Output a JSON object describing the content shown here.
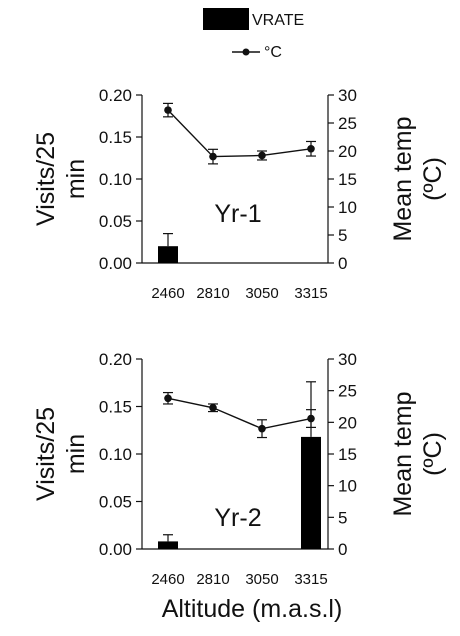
{
  "legend": {
    "bar_label": "VRATE",
    "line_label": "°C"
  },
  "xlabel": "Altitude (m.a.s.l)",
  "colors": {
    "bar": "#000000",
    "line": "#111111",
    "axis": "#111111"
  },
  "chart_data": [
    {
      "type": "bar",
      "panel_label": "Yr-1",
      "categories": [
        "2460",
        "2810",
        "3050",
        "3315"
      ],
      "series": [
        {
          "name": "VRATE",
          "axis": "left",
          "values": [
            0.02,
            0,
            0,
            0
          ],
          "errors": [
            0.015,
            0,
            0,
            0
          ]
        },
        {
          "name": "°C",
          "axis": "right",
          "type": "line",
          "values": [
            27.3,
            19.0,
            19.2,
            20.4
          ],
          "errors": [
            1.2,
            1.3,
            0.8,
            1.3
          ]
        }
      ],
      "ylabel": "Visits/25 min",
      "y2label": "Mean temp (ºC)",
      "ylim": [
        0,
        0.2
      ],
      "y2lim": [
        0,
        30
      ],
      "yticks": [
        "0.00",
        "0.05",
        "0.10",
        "0.15",
        "0.20"
      ],
      "y2ticks": [
        "0",
        "5",
        "10",
        "15",
        "20",
        "25",
        "30"
      ]
    },
    {
      "type": "bar",
      "panel_label": "Yr-2",
      "categories": [
        "2460",
        "2810",
        "3050",
        "3315"
      ],
      "series": [
        {
          "name": "VRATE",
          "axis": "left",
          "values": [
            0.008,
            0,
            0,
            0.118
          ],
          "errors": [
            0.007,
            0,
            0,
            0.058
          ]
        },
        {
          "name": "°C",
          "axis": "right",
          "type": "line",
          "values": [
            23.8,
            22.3,
            19.0,
            20.6
          ],
          "errors": [
            0.9,
            0.6,
            1.4,
            1.4
          ]
        }
      ],
      "ylabel": "Visits/25 min",
      "y2label": "Mean temp (ºC)",
      "ylim": [
        0,
        0.2
      ],
      "y2lim": [
        0,
        30
      ],
      "yticks": [
        "0.00",
        "0.05",
        "0.10",
        "0.15",
        "0.20"
      ],
      "y2ticks": [
        "0",
        "5",
        "10",
        "15",
        "20",
        "25",
        "30"
      ]
    }
  ]
}
